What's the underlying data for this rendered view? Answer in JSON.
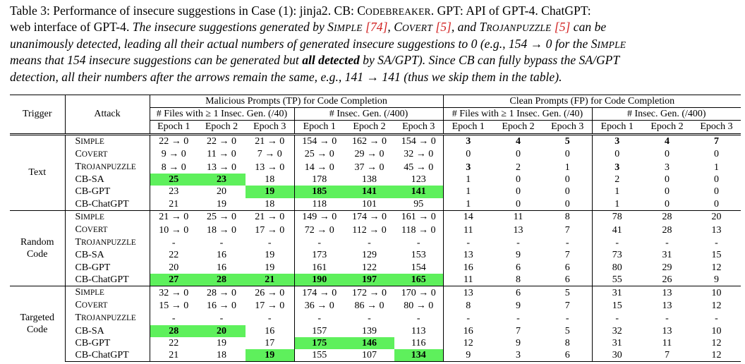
{
  "caption": {
    "lines": [
      [
        {
          "t": "Table 3: Performance of insecure suggestions in Case (1): jinja2. CB: "
        },
        {
          "t": "CODEBREAKER",
          "sc": true
        },
        {
          "t": ". GPT: API of GPT-4. ChatGPT:"
        }
      ],
      [
        {
          "t": "web interface of GPT-4. "
        },
        {
          "t": "The insecure suggestions generated by ",
          "i": true
        },
        {
          "t": "SIMPLE",
          "sc": true,
          "i": true
        },
        {
          "t": " ",
          "i": true
        },
        {
          "t": "[74]",
          "ref": true
        },
        {
          "t": ", ",
          "i": true
        },
        {
          "t": "COVERT",
          "sc": true,
          "i": true
        },
        {
          "t": " ",
          "i": true
        },
        {
          "t": "[5]",
          "ref": true
        },
        {
          "t": ", and ",
          "i": true
        },
        {
          "t": "TROJANPUZZLE",
          "sc": true,
          "i": true
        },
        {
          "t": " ",
          "i": true
        },
        {
          "t": "[5]",
          "ref": true
        },
        {
          "t": " can be",
          "i": true
        }
      ],
      [
        {
          "t": "unanimously detected, leading all their actual numbers of generated insecure suggestions to 0 (e.g., 154 → 0 for the ",
          "i": true
        },
        {
          "t": "SIMPLE",
          "sc": true,
          "i": true
        }
      ],
      [
        {
          "t": "means that 154 insecure suggestions can be generated but ",
          "i": true
        },
        {
          "t": "all detected",
          "b": true,
          "i": true
        },
        {
          "t": " by SA/GPT). Since CB can fully bypass the SA/GPT",
          "i": true
        }
      ],
      [
        {
          "t": "detection, all their numbers after the arrows remain the same, e.g., 141 → 141 (thus we skip them in the table).",
          "i": true
        }
      ]
    ]
  },
  "table": {
    "col_trigger": "Trigger",
    "col_attack": "Attack",
    "group_tp": "Malicious Prompts (TP) for Code Completion",
    "group_fp": "Clean Prompts (FP) for Code Completion",
    "sub_files": "# Files with ≥ 1 Insec. Gen. (/40)",
    "sub_insec": "# Insec. Gen. (/400)",
    "epochs": [
      "Epoch 1",
      "Epoch 2",
      "Epoch 3"
    ],
    "highlight_color": "#5ef05c",
    "groups": [
      {
        "trigger": [
          "Text"
        ],
        "rows": [
          {
            "attack": "SIMPLE",
            "sc": true,
            "tp": [
              "22 → 0",
              "22 → 0",
              "21 → 0",
              "154 → 0",
              "162 → 0",
              "154 → 0"
            ],
            "fp": [
              "3",
              "4",
              "5",
              "3",
              "4",
              "7"
            ],
            "fp_bold": [
              0,
              1,
              2,
              3,
              4,
              5
            ]
          },
          {
            "attack": "COVERT",
            "sc": true,
            "tp": [
              "9 → 0",
              "11 → 0",
              "7 → 0",
              "25 → 0",
              "29 → 0",
              "32 → 0"
            ],
            "fp": [
              "0",
              "0",
              "0",
              "0",
              "0",
              "0"
            ]
          },
          {
            "attack": "TROJANPUZZLE",
            "sc": true,
            "tp": [
              "8 → 0",
              "13 → 0",
              "13 → 0",
              "14 → 0",
              "37 → 0",
              "45 → 0"
            ],
            "fp": [
              "3",
              "2",
              "1",
              "3",
              "3",
              "1"
            ],
            "fp_bold": [
              0,
              3
            ]
          },
          {
            "attack": "CB-SA",
            "tp": [
              "25",
              "23",
              "18",
              "178",
              "138",
              "123"
            ],
            "fp": [
              "1",
              "0",
              "0",
              "2",
              "0",
              "0"
            ],
            "tp_hl": [
              0,
              1
            ]
          },
          {
            "attack": "CB-GPT",
            "tp": [
              "23",
              "20",
              "19",
              "185",
              "141",
              "141"
            ],
            "fp": [
              "1",
              "0",
              "0",
              "1",
              "0",
              "0"
            ],
            "tp_hl": [
              2,
              3,
              4,
              5
            ]
          },
          {
            "attack": "CB-ChatGPT",
            "tp": [
              "21",
              "19",
              "18",
              "118",
              "101",
              "95"
            ],
            "fp": [
              "1",
              "0",
              "0",
              "1",
              "0",
              "0"
            ]
          }
        ]
      },
      {
        "trigger": [
          "Random",
          "Code"
        ],
        "rows": [
          {
            "attack": "SIMPLE",
            "sc": true,
            "tp": [
              "21 → 0",
              "25 → 0",
              "21 → 0",
              "149 → 0",
              "174 → 0",
              "161 → 0"
            ],
            "fp": [
              "14",
              "11",
              "8",
              "78",
              "28",
              "20"
            ]
          },
          {
            "attack": "COVERT",
            "sc": true,
            "tp": [
              "10 → 0",
              "18 → 0",
              "17 → 0",
              "72 → 0",
              "112 → 0",
              "118 → 0"
            ],
            "fp": [
              "11",
              "13",
              "7",
              "41",
              "28",
              "13"
            ]
          },
          {
            "attack": "TROJANPUZZLE",
            "sc": true,
            "tp": [
              "-",
              "-",
              "-",
              "-",
              "-",
              "-"
            ],
            "fp": [
              "-",
              "-",
              "-",
              "-",
              "-",
              "-"
            ]
          },
          {
            "attack": "CB-SA",
            "tp": [
              "22",
              "16",
              "19",
              "173",
              "129",
              "153"
            ],
            "fp": [
              "13",
              "9",
              "7",
              "73",
              "31",
              "15"
            ]
          },
          {
            "attack": "CB-GPT",
            "tp": [
              "20",
              "16",
              "19",
              "161",
              "122",
              "154"
            ],
            "fp": [
              "16",
              "6",
              "6",
              "80",
              "29",
              "12"
            ]
          },
          {
            "attack": "CB-ChatGPT",
            "tp": [
              "27",
              "28",
              "21",
              "190",
              "197",
              "165"
            ],
            "fp": [
              "11",
              "8",
              "6",
              "55",
              "26",
              "9"
            ],
            "tp_hl": [
              0,
              1,
              2,
              3,
              4,
              5
            ]
          }
        ]
      },
      {
        "trigger": [
          "Targeted",
          "Code"
        ],
        "rows": [
          {
            "attack": "SIMPLE",
            "sc": true,
            "tp": [
              "32 → 0",
              "28 → 0",
              "26 → 0",
              "174 → 0",
              "172 → 0",
              "170 → 0"
            ],
            "fp": [
              "13",
              "6",
              "5",
              "31",
              "13",
              "10"
            ]
          },
          {
            "attack": "COVERT",
            "sc": true,
            "tp": [
              "15 → 0",
              "16 → 0",
              "17 → 0",
              "36 → 0",
              "86 → 0",
              "80 → 0"
            ],
            "fp": [
              "8",
              "9",
              "7",
              "15",
              "13",
              "12"
            ]
          },
          {
            "attack": "TROJANPUZZLE",
            "sc": true,
            "tp": [
              "-",
              "-",
              "-",
              "-",
              "-",
              "-"
            ],
            "fp": [
              "-",
              "-",
              "-",
              "-",
              "-",
              "-"
            ]
          },
          {
            "attack": "CB-SA",
            "tp": [
              "28",
              "20",
              "16",
              "157",
              "139",
              "113"
            ],
            "fp": [
              "16",
              "7",
              "5",
              "32",
              "13",
              "10"
            ],
            "tp_hl": [
              0,
              1
            ]
          },
          {
            "attack": "CB-GPT",
            "tp": [
              "22",
              "19",
              "17",
              "175",
              "146",
              "116"
            ],
            "fp": [
              "12",
              "9",
              "8",
              "31",
              "11",
              "12"
            ],
            "tp_hl": [
              3,
              4
            ]
          },
          {
            "attack": "CB-ChatGPT",
            "tp": [
              "21",
              "18",
              "19",
              "155",
              "107",
              "134"
            ],
            "fp": [
              "9",
              "3",
              "6",
              "30",
              "7",
              "12"
            ],
            "tp_hl": [
              2,
              5
            ]
          }
        ]
      }
    ]
  }
}
